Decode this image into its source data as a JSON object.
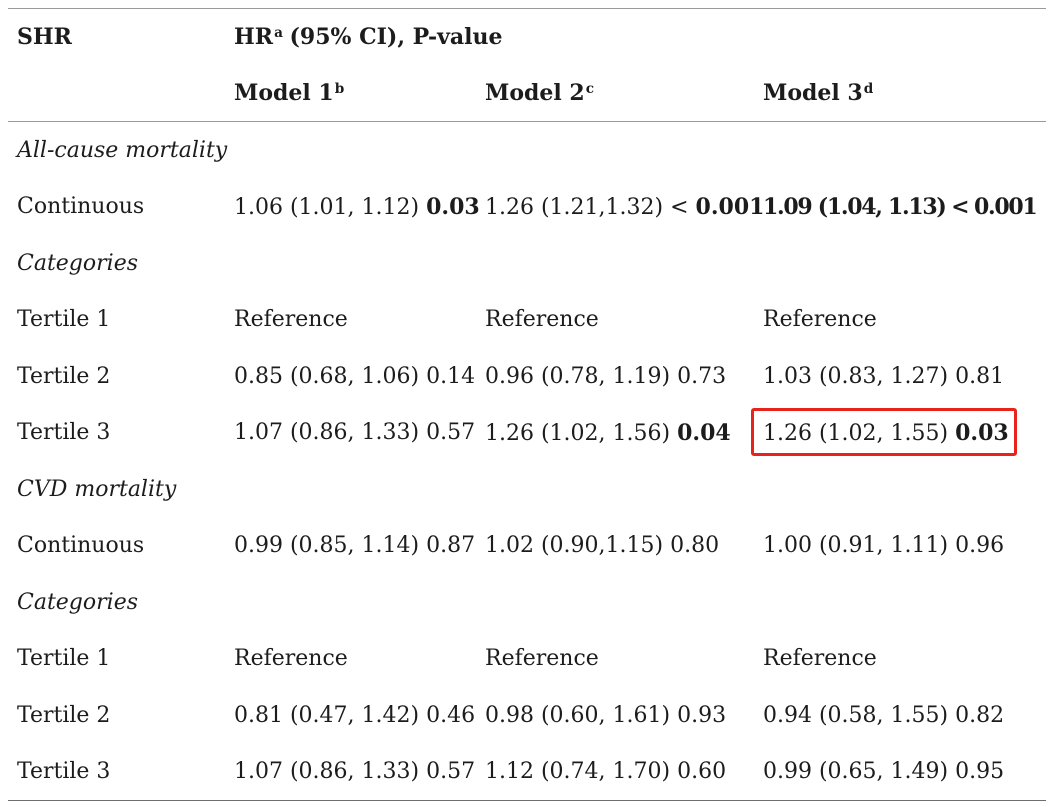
{
  "header": {
    "row_label": "SHR",
    "hr_label": "HR",
    "hr_sup": "a",
    "hr_rest": "(95% CI), P-value",
    "models": [
      {
        "label": "Model 1",
        "sup": "b"
      },
      {
        "label": "Model 2",
        "sup": "c"
      },
      {
        "label": "Model 3",
        "sup": "d"
      }
    ]
  },
  "rows": [
    {
      "type": "section",
      "label": "All-cause mortality"
    },
    {
      "type": "data",
      "label": "Continuous",
      "cells": [
        {
          "estimate": "1.06 (1.01, 1.12)",
          "p": "0.03",
          "p_bold": true
        },
        {
          "estimate": "1.26 (1.21,1.32)",
          "p_prefix": "<",
          "p": "0.001",
          "p_bold": true
        },
        {
          "estimate": "1.09 (1.04, 1.13)",
          "p_prefix": "<",
          "p": "0.001",
          "estimate_bold": true,
          "p_bold": true
        }
      ]
    },
    {
      "type": "section",
      "label": "Categories"
    },
    {
      "type": "data",
      "label": "Tertile 1",
      "cells": [
        {
          "estimate": "Reference"
        },
        {
          "estimate": "Reference"
        },
        {
          "estimate": "Reference"
        }
      ]
    },
    {
      "type": "data",
      "label": "Tertile 2",
      "cells": [
        {
          "estimate": "0.85 (0.68, 1.06)",
          "p": "0.14"
        },
        {
          "estimate": "0.96 (0.78, 1.19)",
          "p": "0.73"
        },
        {
          "estimate": "1.03 (0.83, 1.27)",
          "p": "0.81"
        }
      ]
    },
    {
      "type": "data",
      "label": "Tertile 3",
      "cells": [
        {
          "estimate": "1.07 (0.86, 1.33)",
          "p": "0.57"
        },
        {
          "estimate": "1.26 (1.02, 1.56)",
          "p": "0.04",
          "p_bold": true
        },
        {
          "estimate": "1.26 (1.02, 1.55)",
          "p": "0.03",
          "p_bold": true,
          "highlighted": true
        }
      ]
    },
    {
      "type": "section",
      "label": "CVD mortality"
    },
    {
      "type": "data",
      "label": "Continuous",
      "cells": [
        {
          "estimate": "0.99 (0.85, 1.14)",
          "p": "0.87"
        },
        {
          "estimate": "1.02 (0.90,1.15)",
          "p": "0.80"
        },
        {
          "estimate": "1.00 (0.91, 1.11)",
          "p": "0.96"
        }
      ]
    },
    {
      "type": "section",
      "label": "Categories"
    },
    {
      "type": "data",
      "label": "Tertile 1",
      "cells": [
        {
          "estimate": "Reference"
        },
        {
          "estimate": "Reference"
        },
        {
          "estimate": "Reference"
        }
      ]
    },
    {
      "type": "data",
      "label": "Tertile 2",
      "cells": [
        {
          "estimate": "0.81 (0.47, 1.42)",
          "p": "0.46"
        },
        {
          "estimate": "0.98 (0.60, 1.61)",
          "p": "0.93"
        },
        {
          "estimate": "0.94 (0.58, 1.55)",
          "p": "0.82"
        }
      ]
    },
    {
      "type": "data",
      "label": "Tertile 3",
      "cells": [
        {
          "estimate": "1.07 (0.86, 1.33)",
          "p": "0.57"
        },
        {
          "estimate": "1.12 (0.74, 1.70)",
          "p": "0.60"
        },
        {
          "estimate": "0.99 (0.65, 1.49)",
          "p": "0.95"
        }
      ]
    }
  ],
  "colors": {
    "highlight": "#e8231b"
  }
}
